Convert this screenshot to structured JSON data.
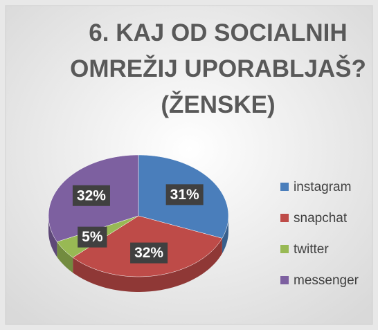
{
  "chart_data": {
    "type": "pie",
    "title": "6. KAJ OD SOCIALNIH OMREŽIJ UPORABLJAŠ? (ŽENSKE)",
    "categories": [
      "instagram",
      "snapchat",
      "twitter",
      "messenger"
    ],
    "values": [
      31,
      32,
      5,
      32
    ],
    "value_labels": [
      "31%",
      "32%",
      "5%",
      "32%"
    ],
    "colors": [
      "#4a7ebb",
      "#be4b48",
      "#98b954",
      "#7d60a0"
    ],
    "legend": "right"
  }
}
